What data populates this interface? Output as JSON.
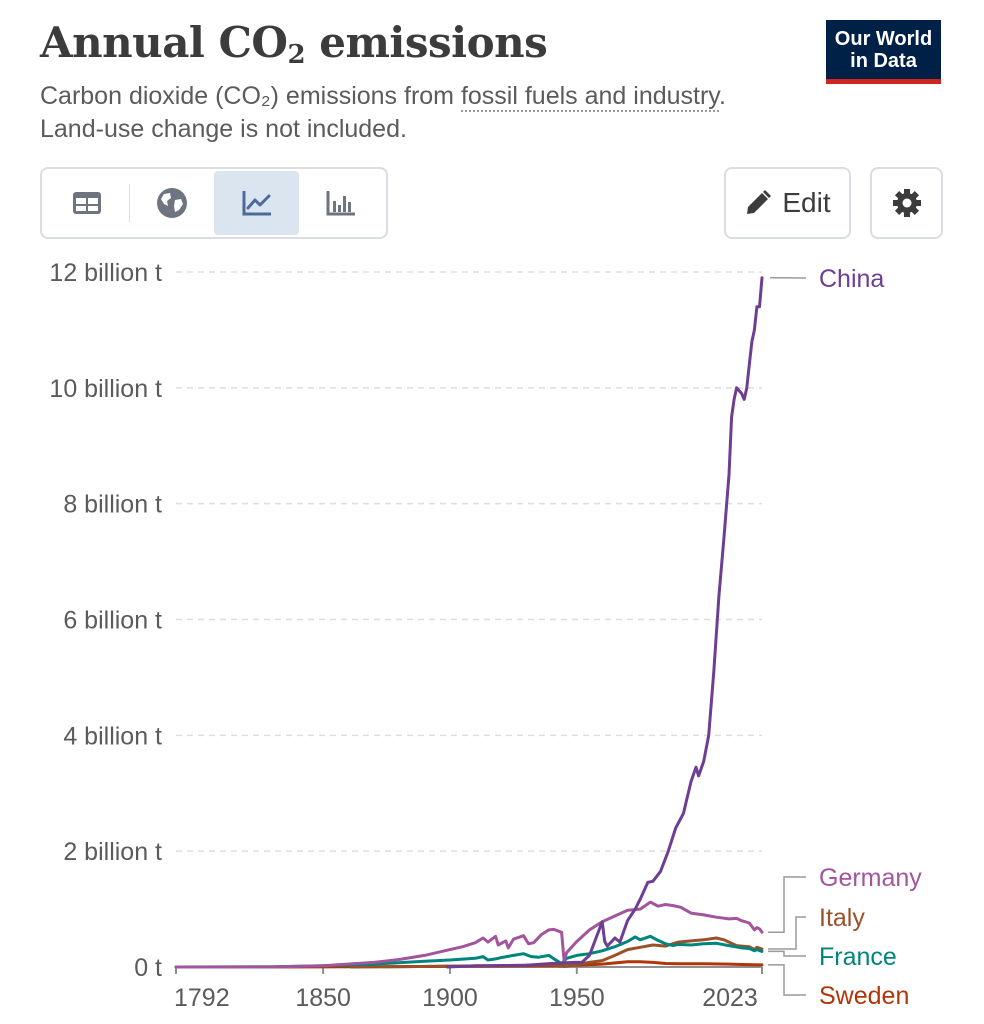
{
  "header": {
    "title_main": "Annual CO",
    "title_sub": "2",
    "title_rest": " emissions",
    "subtitle_a": "Carbon dioxide (CO₂) emissions from ",
    "subtitle_link": "fossil fuels and industry",
    "subtitle_b": ". Land-use change is not included.",
    "logo_line1": "Our World",
    "logo_line2": "in Data"
  },
  "toolbar": {
    "tabs": [
      {
        "name": "table",
        "icon": "table-icon",
        "active": false
      },
      {
        "name": "map",
        "icon": "globe-icon",
        "active": false
      },
      {
        "name": "line-chart",
        "icon": "line-chart-icon",
        "active": true
      },
      {
        "name": "bar-chart",
        "icon": "bar-chart-icon",
        "active": false
      }
    ],
    "edit_label": "Edit",
    "edit_icon": "pencil-icon",
    "settings_icon": "gear-icon"
  },
  "chart_data": {
    "type": "line",
    "title": "Annual CO₂ emissions",
    "ylabel": "",
    "xlabel": "",
    "xlim": [
      1792,
      2023
    ],
    "ylim": [
      0,
      12000000000
    ],
    "x_ticks": [
      1792,
      1850,
      1900,
      1950,
      2023
    ],
    "y_ticks": [
      {
        "value": 0,
        "label": "0 t"
      },
      {
        "value": 2000000000,
        "label": "2 billion t"
      },
      {
        "value": 4000000000,
        "label": "4 billion t"
      },
      {
        "value": 6000000000,
        "label": "6 billion t"
      },
      {
        "value": 8000000000,
        "label": "8 billion t"
      },
      {
        "value": 10000000000,
        "label": "10 billion t"
      },
      {
        "value": 12000000000,
        "label": "12 billion t"
      }
    ],
    "grid": "horizontal-dashed",
    "legend": "right-end-labels",
    "series": [
      {
        "name": "China",
        "color": "#6d3e91",
        "points": [
          [
            1899,
            0
          ],
          [
            1910,
            20000000
          ],
          [
            1930,
            30000000
          ],
          [
            1940,
            60000000
          ],
          [
            1949,
            80000000
          ],
          [
            1952,
            80000000
          ],
          [
            1955,
            200000000
          ],
          [
            1958,
            550000000
          ],
          [
            1960,
            780000000
          ],
          [
            1961,
            440000000
          ],
          [
            1962,
            360000000
          ],
          [
            1965,
            500000000
          ],
          [
            1967,
            430000000
          ],
          [
            1970,
            800000000
          ],
          [
            1973,
            1000000000
          ],
          [
            1975,
            1170000000
          ],
          [
            1978,
            1460000000
          ],
          [
            1980,
            1480000000
          ],
          [
            1983,
            1650000000
          ],
          [
            1986,
            1990000000
          ],
          [
            1989,
            2400000000
          ],
          [
            1992,
            2650000000
          ],
          [
            1995,
            3200000000
          ],
          [
            1997,
            3450000000
          ],
          [
            1998,
            3300000000
          ],
          [
            2000,
            3550000000
          ],
          [
            2002,
            4000000000
          ],
          [
            2004,
            5100000000
          ],
          [
            2006,
            6400000000
          ],
          [
            2008,
            7400000000
          ],
          [
            2010,
            8500000000
          ],
          [
            2011,
            9500000000
          ],
          [
            2012,
            9800000000
          ],
          [
            2013,
            10000000000
          ],
          [
            2015,
            9900000000
          ],
          [
            2016,
            9800000000
          ],
          [
            2017,
            10000000000
          ],
          [
            2018,
            10400000000
          ],
          [
            2019,
            10800000000
          ],
          [
            2020,
            11000000000
          ],
          [
            2021,
            11400000000
          ],
          [
            2022,
            11400000000
          ],
          [
            2023,
            11900000000
          ]
        ]
      },
      {
        "name": "Germany",
        "color": "#a2559c",
        "points": [
          [
            1792,
            0
          ],
          [
            1830,
            0
          ],
          [
            1850,
            20000000
          ],
          [
            1870,
            80000000
          ],
          [
            1880,
            130000000
          ],
          [
            1890,
            200000000
          ],
          [
            1900,
            300000000
          ],
          [
            1905,
            350000000
          ],
          [
            1910,
            420000000
          ],
          [
            1913,
            500000000
          ],
          [
            1915,
            430000000
          ],
          [
            1918,
            530000000
          ],
          [
            1919,
            380000000
          ],
          [
            1922,
            450000000
          ],
          [
            1923,
            330000000
          ],
          [
            1925,
            480000000
          ],
          [
            1929,
            540000000
          ],
          [
            1931,
            400000000
          ],
          [
            1933,
            420000000
          ],
          [
            1936,
            560000000
          ],
          [
            1939,
            640000000
          ],
          [
            1941,
            650000000
          ],
          [
            1944,
            600000000
          ],
          [
            1945,
            110000000
          ],
          [
            1946,
            250000000
          ],
          [
            1950,
            440000000
          ],
          [
            1955,
            640000000
          ],
          [
            1960,
            780000000
          ],
          [
            1965,
            880000000
          ],
          [
            1970,
            980000000
          ],
          [
            1975,
            1000000000
          ],
          [
            1979,
            1120000000
          ],
          [
            1982,
            1050000000
          ],
          [
            1985,
            1080000000
          ],
          [
            1988,
            1060000000
          ],
          [
            1991,
            1030000000
          ],
          [
            1995,
            930000000
          ],
          [
            2000,
            900000000
          ],
          [
            2005,
            860000000
          ],
          [
            2010,
            830000000
          ],
          [
            2013,
            840000000
          ],
          [
            2015,
            800000000
          ],
          [
            2018,
            760000000
          ],
          [
            2019,
            700000000
          ],
          [
            2020,
            640000000
          ],
          [
            2021,
            680000000
          ],
          [
            2022,
            660000000
          ],
          [
            2023,
            600000000
          ]
        ]
      },
      {
        "name": "Italy",
        "color": "#9a5129",
        "points": [
          [
            1861,
            0
          ],
          [
            1880,
            5000000
          ],
          [
            1900,
            15000000
          ],
          [
            1920,
            20000000
          ],
          [
            1940,
            40000000
          ],
          [
            1945,
            10000000
          ],
          [
            1950,
            40000000
          ],
          [
            1955,
            80000000
          ],
          [
            1960,
            110000000
          ],
          [
            1965,
            200000000
          ],
          [
            1970,
            300000000
          ],
          [
            1975,
            340000000
          ],
          [
            1980,
            380000000
          ],
          [
            1985,
            360000000
          ],
          [
            1990,
            430000000
          ],
          [
            1995,
            450000000
          ],
          [
            2000,
            470000000
          ],
          [
            2005,
            500000000
          ],
          [
            2008,
            470000000
          ],
          [
            2010,
            430000000
          ],
          [
            2013,
            370000000
          ],
          [
            2015,
            360000000
          ],
          [
            2018,
            350000000
          ],
          [
            2020,
            300000000
          ],
          [
            2021,
            340000000
          ],
          [
            2023,
            310000000
          ]
        ]
      },
      {
        "name": "France",
        "color": "#00847e",
        "points": [
          [
            1792,
            0
          ],
          [
            1830,
            5000000
          ],
          [
            1850,
            20000000
          ],
          [
            1870,
            50000000
          ],
          [
            1890,
            100000000
          ],
          [
            1900,
            120000000
          ],
          [
            1910,
            150000000
          ],
          [
            1913,
            180000000
          ],
          [
            1915,
            120000000
          ],
          [
            1918,
            140000000
          ],
          [
            1920,
            160000000
          ],
          [
            1925,
            200000000
          ],
          [
            1929,
            230000000
          ],
          [
            1932,
            180000000
          ],
          [
            1935,
            170000000
          ],
          [
            1939,
            200000000
          ],
          [
            1941,
            140000000
          ],
          [
            1944,
            60000000
          ],
          [
            1946,
            150000000
          ],
          [
            1950,
            200000000
          ],
          [
            1955,
            230000000
          ],
          [
            1960,
            280000000
          ],
          [
            1965,
            350000000
          ],
          [
            1970,
            440000000
          ],
          [
            1973,
            520000000
          ],
          [
            1975,
            470000000
          ],
          [
            1979,
            530000000
          ],
          [
            1982,
            460000000
          ],
          [
            1985,
            400000000
          ],
          [
            1988,
            370000000
          ],
          [
            1990,
            390000000
          ],
          [
            1995,
            380000000
          ],
          [
            2000,
            400000000
          ],
          [
            2005,
            410000000
          ],
          [
            2010,
            370000000
          ],
          [
            2015,
            330000000
          ],
          [
            2018,
            320000000
          ],
          [
            2020,
            280000000
          ],
          [
            2021,
            300000000
          ],
          [
            2023,
            270000000
          ]
        ]
      },
      {
        "name": "Sweden",
        "color": "#b13507",
        "points": [
          [
            1792,
            0
          ],
          [
            1850,
            2000000
          ],
          [
            1900,
            10000000
          ],
          [
            1920,
            15000000
          ],
          [
            1940,
            20000000
          ],
          [
            1945,
            20000000
          ],
          [
            1950,
            30000000
          ],
          [
            1960,
            50000000
          ],
          [
            1970,
            90000000
          ],
          [
            1975,
            90000000
          ],
          [
            1980,
            80000000
          ],
          [
            1985,
            60000000
          ],
          [
            1990,
            55000000
          ],
          [
            2000,
            55000000
          ],
          [
            2010,
            50000000
          ],
          [
            2015,
            43000000
          ],
          [
            2020,
            38000000
          ],
          [
            2023,
            36000000
          ]
        ]
      }
    ]
  }
}
